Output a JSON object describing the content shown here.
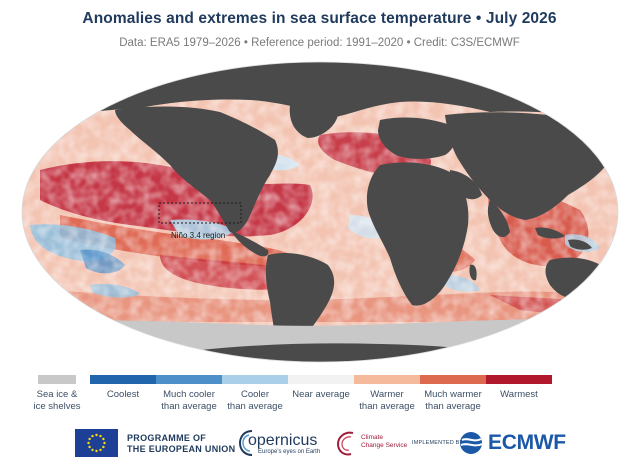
{
  "title": "Anomalies and extremes in sea surface temperature • July 2026",
  "subtitle": "Data: ERA5 1979–2026 • Reference period: 1991–2020 • Credit: C3S/ECMWF",
  "map": {
    "region_label": "Niño 3.4 region",
    "land_color": "#4a4a4a",
    "ice_color": "#c8c8c8"
  },
  "legend": [
    {
      "label": "Sea ice &\nice shelves",
      "color": "#c8c8c8"
    },
    {
      "label": "Coolest",
      "color": "#2166ac"
    },
    {
      "label": "Much cooler\nthan average",
      "color": "#4d8fc8"
    },
    {
      "label": "Cooler\nthan average",
      "color": "#a9d0e8"
    },
    {
      "label": "Near average",
      "color": "#f2f2f2"
    },
    {
      "label": "Warmer\nthan average",
      "color": "#f5b99c"
    },
    {
      "label": "Much warmer\nthan average",
      "color": "#dd6a4e"
    },
    {
      "label": "Warmest",
      "color": "#b2182b"
    }
  ],
  "footer": {
    "eu_line1": "PROGRAMME OF",
    "eu_line2": "THE EUROPEAN UNION",
    "copernicus": "opernicus",
    "copernicus_tag": "Europe's eyes on Earth",
    "c3s_line1": "Climate",
    "c3s_line2": "Change Service",
    "implemented_by": "IMPLEMENTED BY",
    "ecmwf": "ECMWF"
  }
}
